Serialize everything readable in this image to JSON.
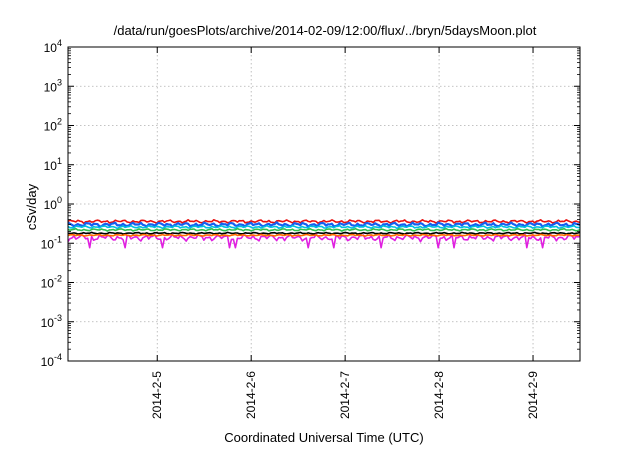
{
  "chart_data": {
    "type": "line",
    "title": "/data/run/goesPlots/archive/2014-02-09/12:00/flux/../bryn/5daysMoon.plot",
    "xlabel": "Coordinated Universal Time (UTC)",
    "ylabel": "cSv/day",
    "y_scale": "log",
    "ylim_exponents": [
      -4,
      4
    ],
    "y_tick_base": "10",
    "y_tick_exponents": [
      "-4",
      "-3",
      "-2",
      "-1",
      "0",
      "1",
      "2",
      "3",
      "4"
    ],
    "x_range_days": [
      4.05,
      9.5
    ],
    "x_tick_labels": [
      "2014-2-5",
      "2014-2-6",
      "2014-2-7",
      "2014-2-8",
      "2014-2-9"
    ],
    "x_tick_days": [
      5,
      6,
      7,
      8,
      9
    ],
    "grid": true,
    "series": [
      {
        "color": "#e81010",
        "level": 0.36,
        "amp": 0.1
      },
      {
        "color": "#1560f0",
        "level": 0.3,
        "amp": 0.13
      },
      {
        "color": "#00c0e0",
        "level": 0.26,
        "amp": 0.08
      },
      {
        "color": "#30c050",
        "level": 0.22,
        "amp": 0.07
      },
      {
        "color": "#000000",
        "level": 0.18,
        "amp": 0.05
      },
      {
        "color": "#e020e0",
        "level": 0.14,
        "amp": 0.2
      },
      {
        "color": "#ff6a00",
        "level": 0.16,
        "amp": 0.05
      }
    ]
  }
}
